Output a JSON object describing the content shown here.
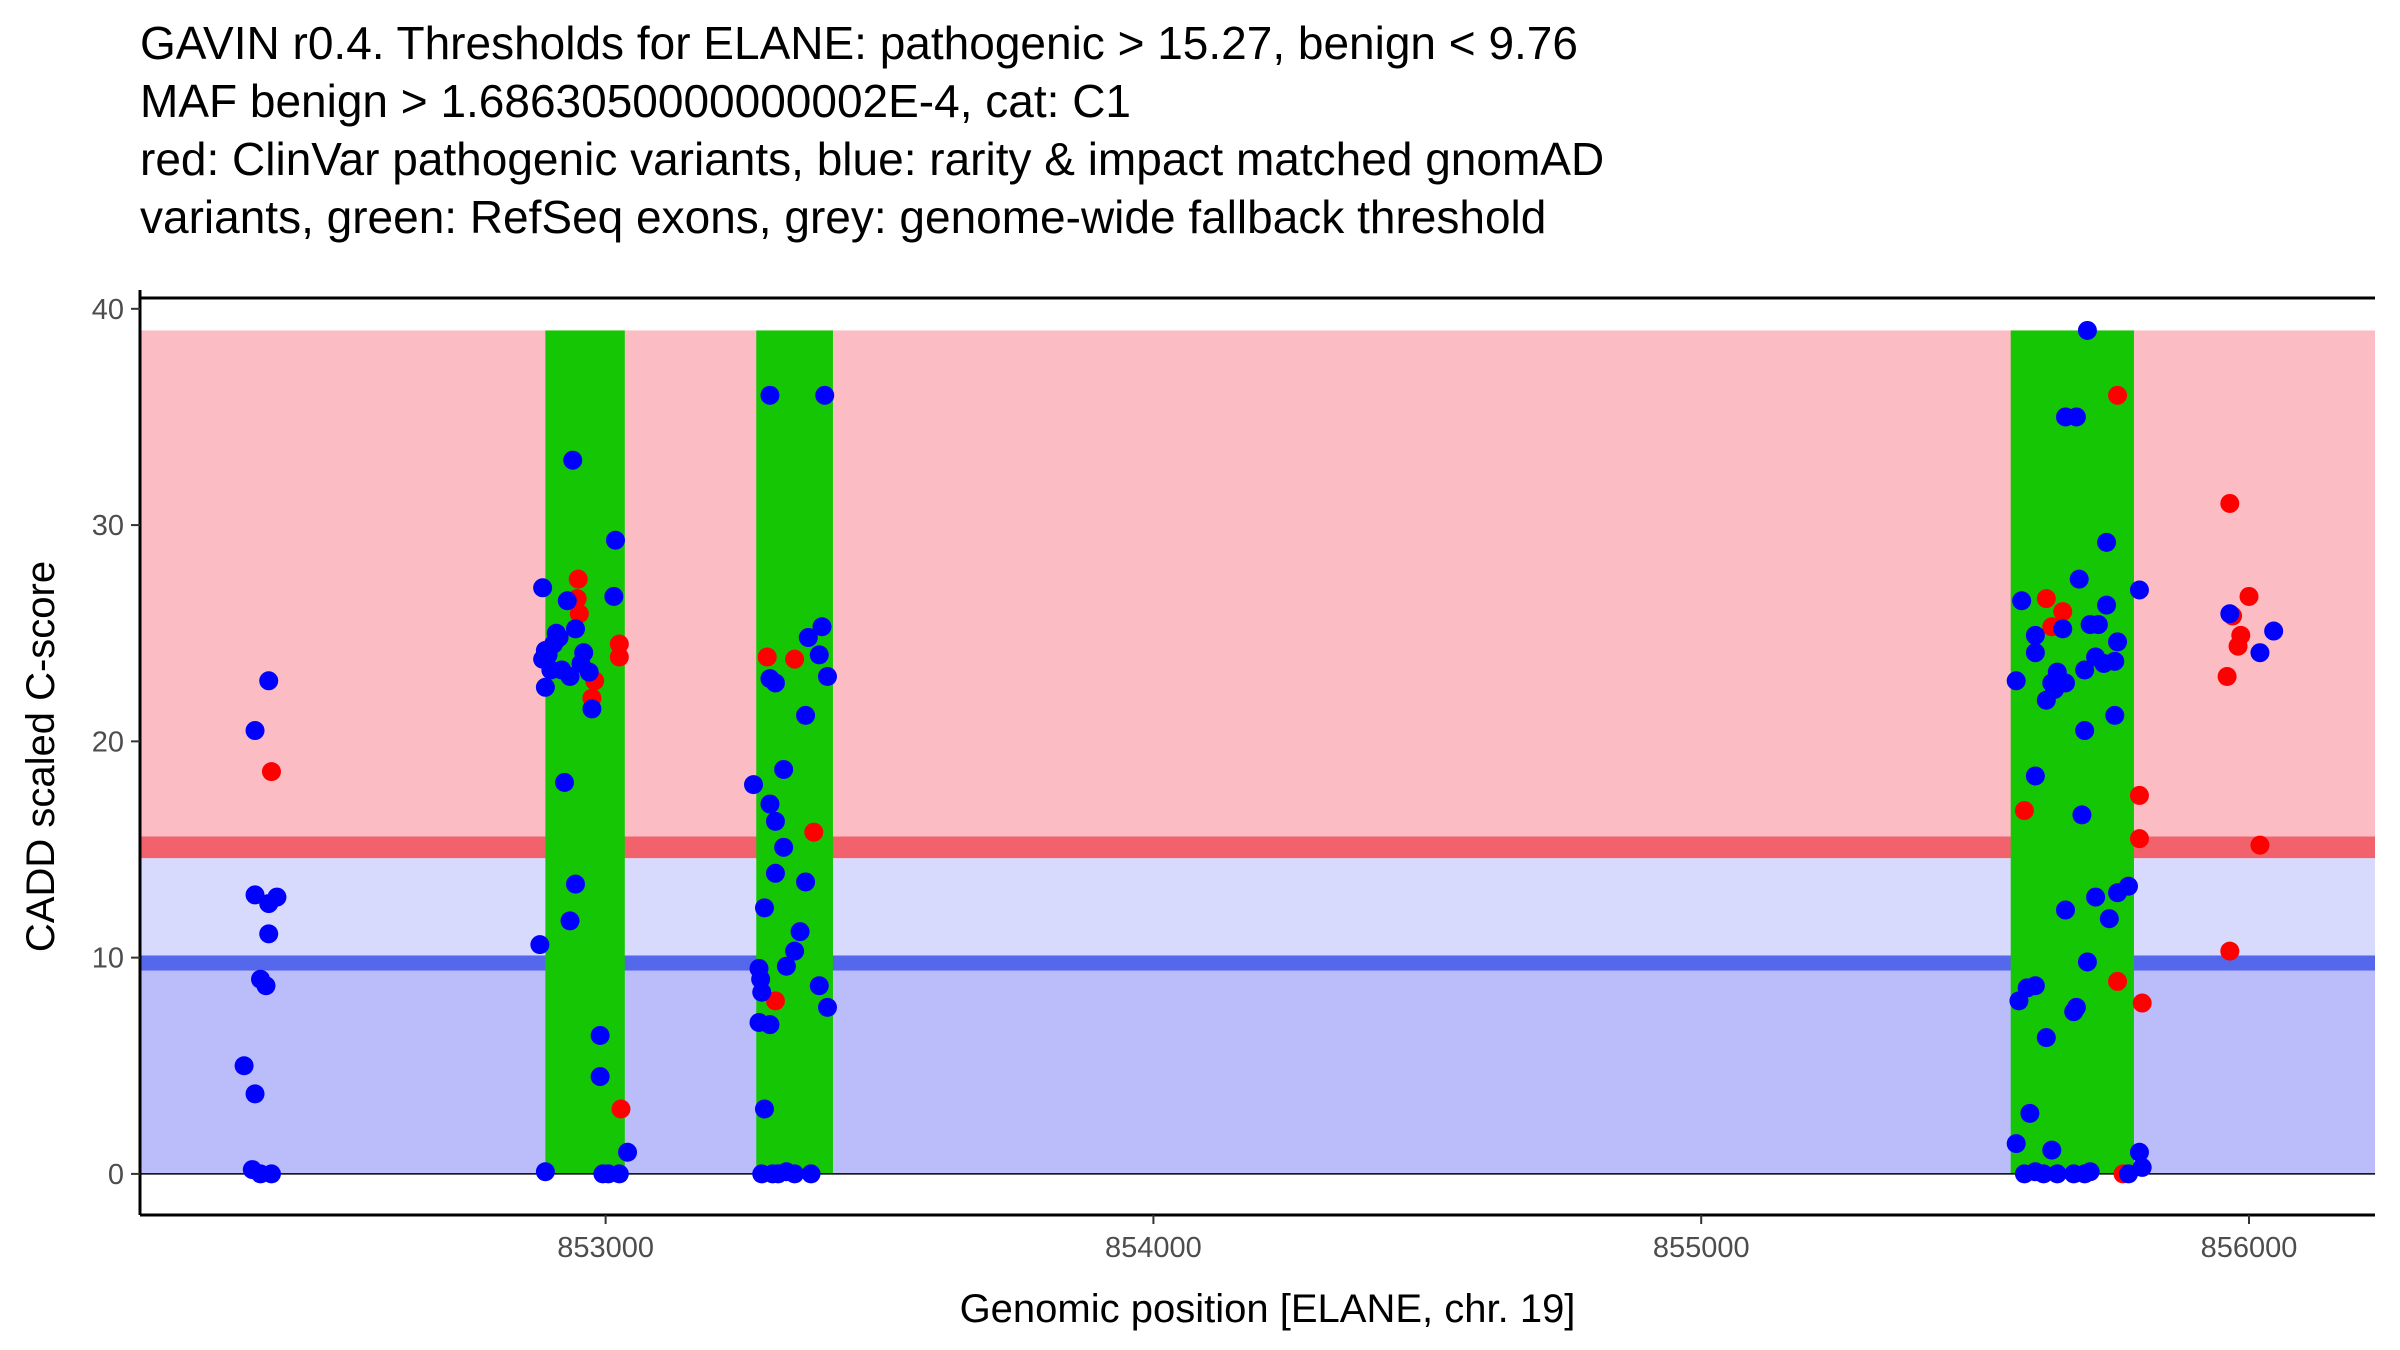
{
  "chart_data": {
    "type": "scatter",
    "title_lines": [
      "GAVIN r0.4. Thresholds for ELANE: pathogenic > 15.27, benign < 9.76",
      "MAF benign > 1.6863050000000002E-4, cat: C1",
      "red: ClinVar pathogenic variants, blue: rarity & impact matched gnomAD",
      "variants, green: RefSeq exons, grey: genome-wide fallback threshold"
    ],
    "xlabel": "Genomic position [ELANE, chr. 19]",
    "ylabel": "CADD scaled C-score",
    "xlim": [
      852150,
      856230
    ],
    "ylim": [
      -1.9,
      40.5
    ],
    "x_ticks": [
      853000,
      854000,
      855000,
      856000
    ],
    "y_ticks": [
      0,
      10,
      20,
      30,
      40
    ],
    "grid": false,
    "colors": {
      "pathogenic_zone": "#fcbcc3",
      "pathogenic_line": "#f1626d",
      "benign_light_zone": "#d7d9fd",
      "benign_zone": "#babdfa",
      "benign_line": "#5568ec",
      "exon": "#15c605",
      "clinvar": "#ff0000",
      "gnomad": "#0000ff"
    },
    "zones": {
      "pathogenic": [
        15.27,
        39
      ],
      "pathogenic_line": [
        14.6,
        15.6
      ],
      "benign_light": [
        10,
        14.6
      ],
      "benign_line": [
        9.4,
        10.1
      ],
      "benign": [
        0,
        9.4
      ],
      "zone_x": [
        852150,
        856230
      ]
    },
    "exons": [
      {
        "start": 852890,
        "end": 853035
      },
      {
        "start": 853275,
        "end": 853415
      },
      {
        "start": 855565,
        "end": 855790
      }
    ],
    "series": [
      {
        "name": "ClinVar pathogenic variants",
        "color": "clinvar",
        "points": [
          [
            852390,
            18.6
          ],
          [
            852950,
            27.5
          ],
          [
            852948,
            26.6
          ],
          [
            852952,
            25.9
          ],
          [
            852980,
            22.8
          ],
          [
            852975,
            22.0
          ],
          [
            853025,
            24.5
          ],
          [
            853025,
            23.9
          ],
          [
            853028,
            3.0
          ],
          [
            853295,
            23.9
          ],
          [
            853345,
            23.8
          ],
          [
            853310,
            8.0
          ],
          [
            853380,
            15.8
          ],
          [
            855590,
            16.8
          ],
          [
            855630,
            26.6
          ],
          [
            855640,
            25.3
          ],
          [
            855660,
            26.0
          ],
          [
            855760,
            36.0
          ],
          [
            855760,
            8.9
          ],
          [
            855770,
            0.0
          ],
          [
            855800,
            17.5
          ],
          [
            855800,
            15.5
          ],
          [
            855805,
            7.9
          ],
          [
            855965,
            31.0
          ],
          [
            855970,
            25.8
          ],
          [
            855985,
            24.9
          ],
          [
            855980,
            24.4
          ],
          [
            856000,
            26.7
          ],
          [
            855960,
            23.0
          ],
          [
            856020,
            15.2
          ],
          [
            855965,
            10.3
          ]
        ]
      },
      {
        "name": "rarity & impact matched gnomAD variants",
        "color": "gnomad",
        "points": [
          [
            852340,
            5.0
          ],
          [
            852360,
            20.5
          ],
          [
            852385,
            22.8
          ],
          [
            852360,
            12.9
          ],
          [
            852385,
            12.5
          ],
          [
            852400,
            12.8
          ],
          [
            852385,
            11.1
          ],
          [
            852370,
            9.0
          ],
          [
            852380,
            8.7
          ],
          [
            852360,
            3.7
          ],
          [
            852355,
            0.2
          ],
          [
            852370,
            0.0
          ],
          [
            852390,
            0.0
          ],
          [
            852885,
            27.1
          ],
          [
            852940,
            33.0
          ],
          [
            852880,
            10.6
          ],
          [
            852890,
            0.1
          ],
          [
            852890,
            24.2
          ],
          [
            852905,
            24.5
          ],
          [
            852895,
            24.0
          ],
          [
            852885,
            23.8
          ],
          [
            852900,
            23.3
          ],
          [
            852915,
            24.8
          ],
          [
            852930,
            26.5
          ],
          [
            852945,
            25.2
          ],
          [
            852960,
            24.1
          ],
          [
            852920,
            23.3
          ],
          [
            852935,
            23.0
          ],
          [
            852955,
            23.6
          ],
          [
            852970,
            23.2
          ],
          [
            852890,
            22.5
          ],
          [
            852910,
            25.0
          ],
          [
            852925,
            18.1
          ],
          [
            852945,
            13.4
          ],
          [
            852935,
            11.7
          ],
          [
            852975,
            21.5
          ],
          [
            853015,
            26.7
          ],
          [
            853018,
            29.3
          ],
          [
            852990,
            6.4
          ],
          [
            852990,
            4.5
          ],
          [
            853040,
            1.0
          ],
          [
            852995,
            0.0
          ],
          [
            853005,
            0.0
          ],
          [
            853025,
            0.0
          ],
          [
            853270,
            18.0
          ],
          [
            853300,
            36.0
          ],
          [
            853400,
            36.0
          ],
          [
            853300,
            17.1
          ],
          [
            853310,
            16.3
          ],
          [
            853325,
            18.7
          ],
          [
            853325,
            15.1
          ],
          [
            853310,
            13.9
          ],
          [
            853290,
            12.3
          ],
          [
            853365,
            21.2
          ],
          [
            853365,
            13.5
          ],
          [
            853355,
            11.2
          ],
          [
            853345,
            10.3
          ],
          [
            853330,
            9.6
          ],
          [
            853280,
            9.5
          ],
          [
            853283,
            9.0
          ],
          [
            853285,
            8.4
          ],
          [
            853280,
            7.0
          ],
          [
            853300,
            6.9
          ],
          [
            853290,
            3.0
          ],
          [
            853310,
            22.7
          ],
          [
            853370,
            24.8
          ],
          [
            853395,
            25.3
          ],
          [
            853390,
            24.0
          ],
          [
            853405,
            23.0
          ],
          [
            853300,
            22.9
          ],
          [
            853390,
            8.7
          ],
          [
            853405,
            7.7
          ],
          [
            853285,
            0.0
          ],
          [
            853305,
            0.0
          ],
          [
            853315,
            0.0
          ],
          [
            853330,
            0.1
          ],
          [
            853345,
            0.0
          ],
          [
            853375,
            0.0
          ],
          [
            855705,
            39.0
          ],
          [
            855665,
            35.0
          ],
          [
            855685,
            35.0
          ],
          [
            855740,
            29.2
          ],
          [
            855690,
            27.5
          ],
          [
            855800,
            27.0
          ],
          [
            855585,
            26.5
          ],
          [
            855740,
            26.3
          ],
          [
            855610,
            24.9
          ],
          [
            855660,
            25.2
          ],
          [
            855710,
            25.4
          ],
          [
            855725,
            25.4
          ],
          [
            855760,
            24.6
          ],
          [
            855575,
            22.8
          ],
          [
            855610,
            24.1
          ],
          [
            855640,
            22.7
          ],
          [
            855650,
            23.2
          ],
          [
            855665,
            22.7
          ],
          [
            855700,
            23.3
          ],
          [
            855720,
            23.9
          ],
          [
            855735,
            23.6
          ],
          [
            855755,
            23.7
          ],
          [
            855630,
            21.9
          ],
          [
            855645,
            22.4
          ],
          [
            855700,
            20.5
          ],
          [
            855755,
            21.2
          ],
          [
            855610,
            18.4
          ],
          [
            855695,
            16.6
          ],
          [
            855780,
            13.3
          ],
          [
            855760,
            13.0
          ],
          [
            855665,
            12.2
          ],
          [
            855720,
            12.8
          ],
          [
            855745,
            11.8
          ],
          [
            855705,
            9.8
          ],
          [
            855595,
            8.6
          ],
          [
            855610,
            8.7
          ],
          [
            855580,
            8.0
          ],
          [
            855685,
            7.7
          ],
          [
            855680,
            7.5
          ],
          [
            855630,
            6.3
          ],
          [
            855600,
            2.8
          ],
          [
            855575,
            1.4
          ],
          [
            855640,
            1.1
          ],
          [
            855800,
            1.0
          ],
          [
            855805,
            0.3
          ],
          [
            855590,
            0.0
          ],
          [
            855610,
            0.1
          ],
          [
            855625,
            0.0
          ],
          [
            855650,
            0.0
          ],
          [
            855680,
            0.0
          ],
          [
            855700,
            0.0
          ],
          [
            855710,
            0.1
          ],
          [
            855780,
            0.0
          ],
          [
            856045,
            25.1
          ],
          [
            856020,
            24.1
          ],
          [
            855965,
            25.9
          ]
        ]
      }
    ]
  }
}
